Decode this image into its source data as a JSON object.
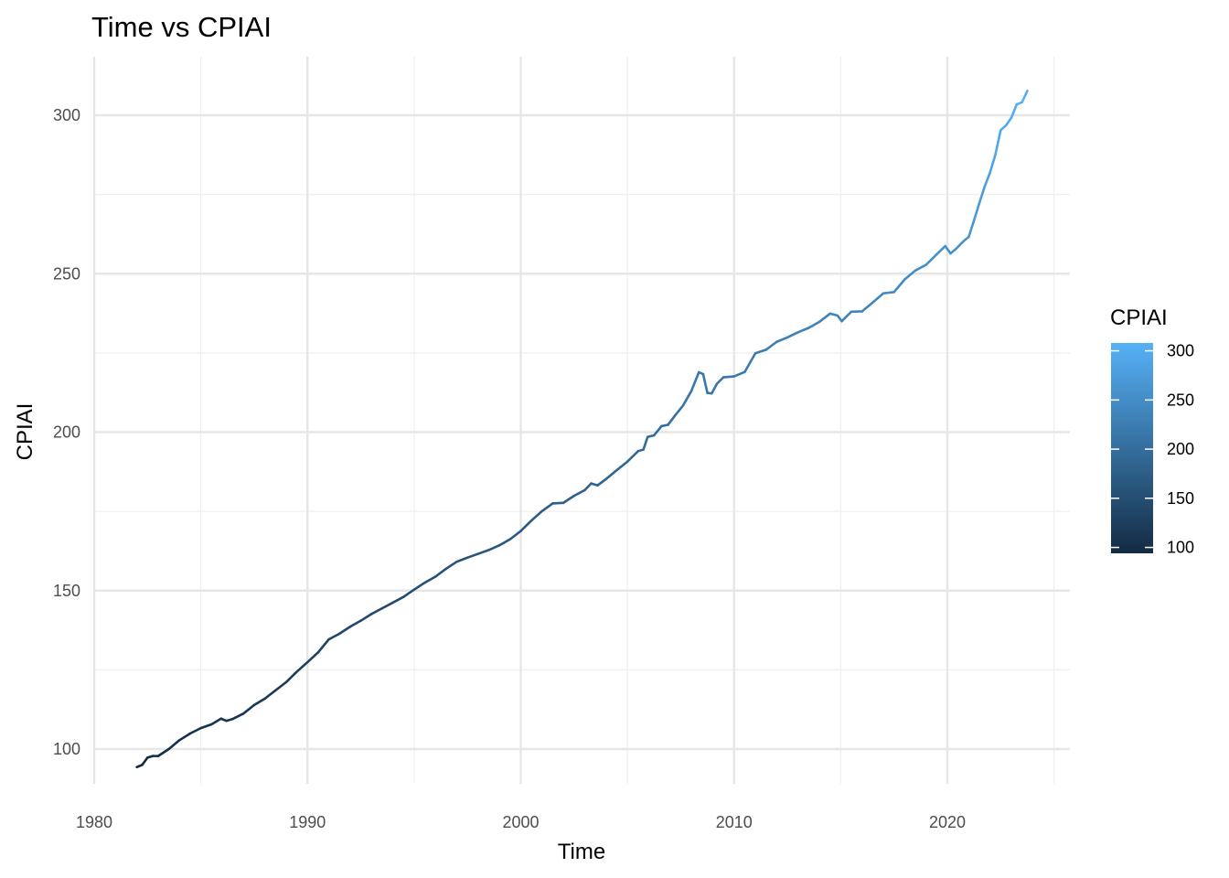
{
  "chart_data": {
    "type": "line",
    "title": "Time vs CPIAI",
    "xlabel": "Time",
    "ylabel": "CPIAI",
    "xlim": [
      1980,
      2025.5
    ],
    "ylim": [
      86,
      319
    ],
    "x_ticks": [
      1980,
      1990,
      2000,
      2010,
      2020
    ],
    "x_tick_labels": [
      "1980",
      "1990",
      "2000",
      "2010",
      "2020"
    ],
    "y_ticks": [
      100,
      150,
      200,
      250,
      300
    ],
    "y_tick_labels": [
      "100",
      "150",
      "200",
      "250",
      "300"
    ],
    "grid": true,
    "legend": {
      "title": "CPIAI",
      "type": "colorbar",
      "placement": "right",
      "range": [
        94,
        308
      ],
      "ticks": [
        100,
        150,
        200,
        250,
        300
      ],
      "tick_labels": [
        "100",
        "150",
        "200",
        "250",
        "300"
      ],
      "color_low": "#132B43",
      "color_high": "#56B1F7"
    },
    "series": [
      {
        "color_mapped_to": "CPIAI",
        "x": [
          1982.0,
          1982.25,
          1982.5,
          1982.75,
          1983.0,
          1983.5,
          1984.0,
          1984.5,
          1985.0,
          1985.5,
          1985.95,
          1986.2,
          1986.5,
          1987.0,
          1987.5,
          1988.0,
          1988.5,
          1989.0,
          1989.5,
          1990.0,
          1990.5,
          1991.0,
          1991.5,
          1992.0,
          1992.5,
          1993.0,
          1993.5,
          1994.0,
          1994.5,
          1995.0,
          1995.5,
          1996.0,
          1996.5,
          1997.0,
          1997.5,
          1998.0,
          1998.5,
          1999.0,
          1999.5,
          2000.0,
          2000.5,
          2001.0,
          2001.5,
          2002.0,
          2002.5,
          2003.0,
          2003.3,
          2003.6,
          2004.0,
          2004.5,
          2005.0,
          2005.5,
          2005.75,
          2005.95,
          2006.25,
          2006.6,
          2006.9,
          2007.25,
          2007.6,
          2008.0,
          2008.35,
          2008.55,
          2008.75,
          2008.95,
          2009.2,
          2009.5,
          2010.0,
          2010.5,
          2011.0,
          2011.5,
          2012.0,
          2012.5,
          2013.0,
          2013.5,
          2014.0,
          2014.5,
          2014.85,
          2015.05,
          2015.5,
          2016.0,
          2016.5,
          2017.0,
          2017.5,
          2018.0,
          2018.5,
          2019.0,
          2019.5,
          2019.9,
          2020.15,
          2020.4,
          2020.75,
          2021.0,
          2021.25,
          2021.5,
          2021.75,
          2022.0,
          2022.25,
          2022.5,
          2022.75,
          2023.0,
          2023.25,
          2023.5,
          2023.75
        ],
        "y": [
          94.3,
          95.0,
          97.3,
          97.8,
          97.8,
          100.0,
          102.8,
          104.9,
          106.6,
          107.8,
          109.6,
          108.9,
          109.5,
          111.2,
          113.9,
          115.9,
          118.5,
          121.1,
          124.4,
          127.4,
          130.5,
          134.6,
          136.4,
          138.6,
          140.5,
          142.6,
          144.4,
          146.2,
          148.0,
          150.3,
          152.5,
          154.4,
          156.9,
          159.1,
          160.4,
          161.6,
          162.8,
          164.3,
          166.2,
          168.8,
          172.1,
          175.1,
          177.5,
          177.7,
          179.9,
          181.7,
          183.8,
          183.2,
          185.2,
          188.0,
          190.7,
          194.0,
          194.5,
          198.5,
          199.0,
          201.9,
          202.3,
          205.4,
          208.3,
          213.0,
          218.9,
          218.3,
          212.4,
          212.2,
          215.3,
          217.3,
          217.6,
          219.0,
          224.9,
          226.0,
          228.5,
          229.9,
          231.5,
          232.9,
          234.8,
          237.4,
          236.8,
          235.0,
          238.0,
          238.1,
          240.9,
          243.8,
          244.2,
          248.2,
          251.0,
          252.8,
          256.1,
          258.7,
          256.4,
          257.8,
          260.2,
          261.6,
          266.8,
          272.3,
          277.5,
          281.9,
          287.5,
          295.3,
          296.8,
          299.2,
          303.4,
          304.1,
          307.7
        ]
      }
    ]
  }
}
